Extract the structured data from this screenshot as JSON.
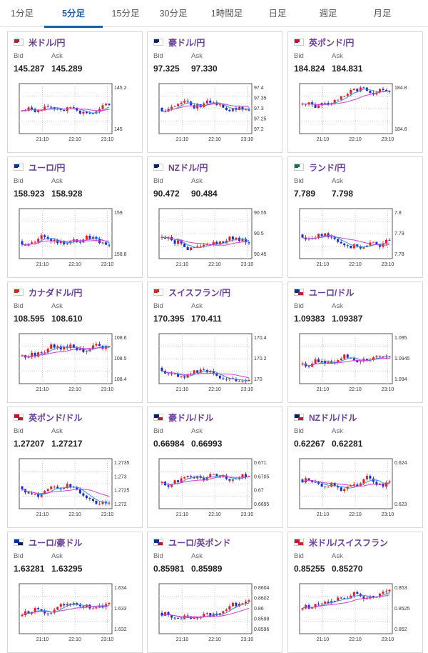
{
  "tabs": [
    "1分足",
    "5分足",
    "15分足",
    "30分足",
    "1時間足",
    "日足",
    "週足",
    "月足"
  ],
  "active_tab": 1,
  "pairs": [
    {
      "name": "米ドル/円",
      "flag_icon": "us-jp-flag-icon",
      "bid_label": "Bid",
      "ask_label": "Ask",
      "bid": "145.287",
      "ask": "145.289",
      "ticks": [
        "145.2",
        "145"
      ],
      "times": [
        "21:10",
        "22:10",
        "23:10"
      ],
      "flagA": "#b22234",
      "flagB": "#ffffff"
    },
    {
      "name": "豪ドル/円",
      "flag_icon": "au-jp-flag-icon",
      "bid_label": "Bid",
      "ask_label": "Ask",
      "bid": "97.325",
      "ask": "97.330",
      "ticks": [
        "97.4",
        "97.35",
        "97.3",
        "97.25",
        "97.2"
      ],
      "times": [
        "21:10",
        "22:10",
        "23:10"
      ],
      "flagA": "#012169",
      "flagB": "#ffffff"
    },
    {
      "name": "英ポンド/円",
      "flag_icon": "gb-jp-flag-icon",
      "bid_label": "Bid",
      "ask_label": "Ask",
      "bid": "184.824",
      "ask": "184.831",
      "ticks": [
        "184.8",
        "184.6"
      ],
      "times": [
        "21:10",
        "22:10",
        "23:10"
      ],
      "flagA": "#c8102e",
      "flagB": "#ffffff"
    },
    {
      "name": "ユーロ/円",
      "flag_icon": "eu-jp-flag-icon",
      "bid_label": "Bid",
      "ask_label": "Ask",
      "bid": "158.923",
      "ask": "158.928",
      "ticks": [
        "159",
        "158.8"
      ],
      "times": [
        "21:10",
        "22:10",
        "23:10"
      ],
      "flagA": "#003399",
      "flagB": "#ffffff"
    },
    {
      "name": "NZドル/円",
      "flag_icon": "nz-jp-flag-icon",
      "bid_label": "Bid",
      "ask_label": "Ask",
      "bid": "90.472",
      "ask": "90.484",
      "ticks": [
        "90.55",
        "90.5",
        "90.45"
      ],
      "times": [
        "21:10",
        "22:10",
        "23:10"
      ],
      "flagA": "#012169",
      "flagB": "#ffffff"
    },
    {
      "name": "ランド/円",
      "flag_icon": "za-jp-flag-icon",
      "bid_label": "Bid",
      "ask_label": "Ask",
      "bid": "7.789",
      "ask": "7.798",
      "ticks": [
        "7.8",
        "7.79",
        "7.78"
      ],
      "times": [
        "21:10",
        "22:10",
        "23:10"
      ],
      "flagA": "#007a4d",
      "flagB": "#ffffff"
    },
    {
      "name": "カナダドル/円",
      "flag_icon": "ca-jp-flag-icon",
      "bid_label": "Bid",
      "ask_label": "Ask",
      "bid": "108.595",
      "ask": "108.610",
      "ticks": [
        "108.6",
        "108.5",
        "108.4"
      ],
      "times": [
        "21:10",
        "22:10",
        "23:10"
      ],
      "flagA": "#d52b1e",
      "flagB": "#ffffff"
    },
    {
      "name": "スイスフラン/円",
      "flag_icon": "ch-jp-flag-icon",
      "bid_label": "Bid",
      "ask_label": "Ask",
      "bid": "170.395",
      "ask": "170.411",
      "ticks": [
        "170.4",
        "170.2",
        "170"
      ],
      "times": [
        "21:10",
        "22:10",
        "23:10"
      ],
      "flagA": "#d52b1e",
      "flagB": "#ffffff"
    },
    {
      "name": "ユーロ/ドル",
      "flag_icon": "eu-us-flag-icon",
      "bid_label": "Bid",
      "ask_label": "Ask",
      "bid": "1.09383",
      "ask": "1.09387",
      "ticks": [
        "1.095",
        "1.0945",
        "1.094"
      ],
      "times": [
        "21:10",
        "22:10",
        "23:10"
      ],
      "flagA": "#003399",
      "flagB": "#b22234"
    },
    {
      "name": "英ポンド/ドル",
      "flag_icon": "gb-us-flag-icon",
      "bid_label": "Bid",
      "ask_label": "Ask",
      "bid": "1.27207",
      "ask": "1.27217",
      "ticks": [
        "1.2735",
        "1.273",
        "1.2725",
        "1.272"
      ],
      "times": [
        "21:10",
        "22:10",
        "23:10"
      ],
      "flagA": "#c8102e",
      "flagB": "#b22234"
    },
    {
      "name": "豪ドル/ドル",
      "flag_icon": "au-us-flag-icon",
      "bid_label": "Bid",
      "ask_label": "Ask",
      "bid": "0.66984",
      "ask": "0.66993",
      "ticks": [
        "0.671",
        "0.6705",
        "0.67",
        "0.6695"
      ],
      "times": [
        "21:10",
        "22:10",
        "23:10"
      ],
      "flagA": "#012169",
      "flagB": "#b22234"
    },
    {
      "name": "NZドル/ドル",
      "flag_icon": "nz-us-flag-icon",
      "bid_label": "Bid",
      "ask_label": "Ask",
      "bid": "0.62267",
      "ask": "0.62281",
      "ticks": [
        "0.624",
        "0.623"
      ],
      "times": [
        "21:10",
        "22:10",
        "23:10"
      ],
      "flagA": "#012169",
      "flagB": "#b22234"
    },
    {
      "name": "ユーロ/豪ドル",
      "flag_icon": "eu-au-flag-icon",
      "bid_label": "Bid",
      "ask_label": "Ask",
      "bid": "1.63281",
      "ask": "1.63295",
      "ticks": [
        "1.634",
        "1.633",
        "1.632"
      ],
      "times": [
        "21:10",
        "22:10",
        "23:10"
      ],
      "flagA": "#003399",
      "flagB": "#012169"
    },
    {
      "name": "ユーロ/英ポンド",
      "flag_icon": "eu-gb-flag-icon",
      "bid_label": "Bid",
      "ask_label": "Ask",
      "bid": "0.85981",
      "ask": "0.85989",
      "ticks": [
        "0.8604",
        "0.8602",
        "0.86",
        "0.8598",
        "0.8596"
      ],
      "times": [
        "21:10",
        "22:10",
        "23:10"
      ],
      "flagA": "#003399",
      "flagB": "#c8102e"
    },
    {
      "name": "米ドル/スイスフラン",
      "flag_icon": "us-ch-flag-icon",
      "bid_label": "Bid",
      "ask_label": "Ask",
      "bid": "0.85255",
      "ask": "0.85270",
      "ticks": [
        "0.853",
        "0.8525",
        "0.852"
      ],
      "times": [
        "21:10",
        "22:10",
        "23:10"
      ],
      "flagA": "#b22234",
      "flagB": "#d52b1e"
    }
  ],
  "colors": {
    "accent": "#1a5fa8",
    "pair_text": "#6a3ea1",
    "up": "#e02020",
    "down": "#1a2bd0",
    "ma_short": "#3a8ee6",
    "ma_long": "#d040d0"
  }
}
